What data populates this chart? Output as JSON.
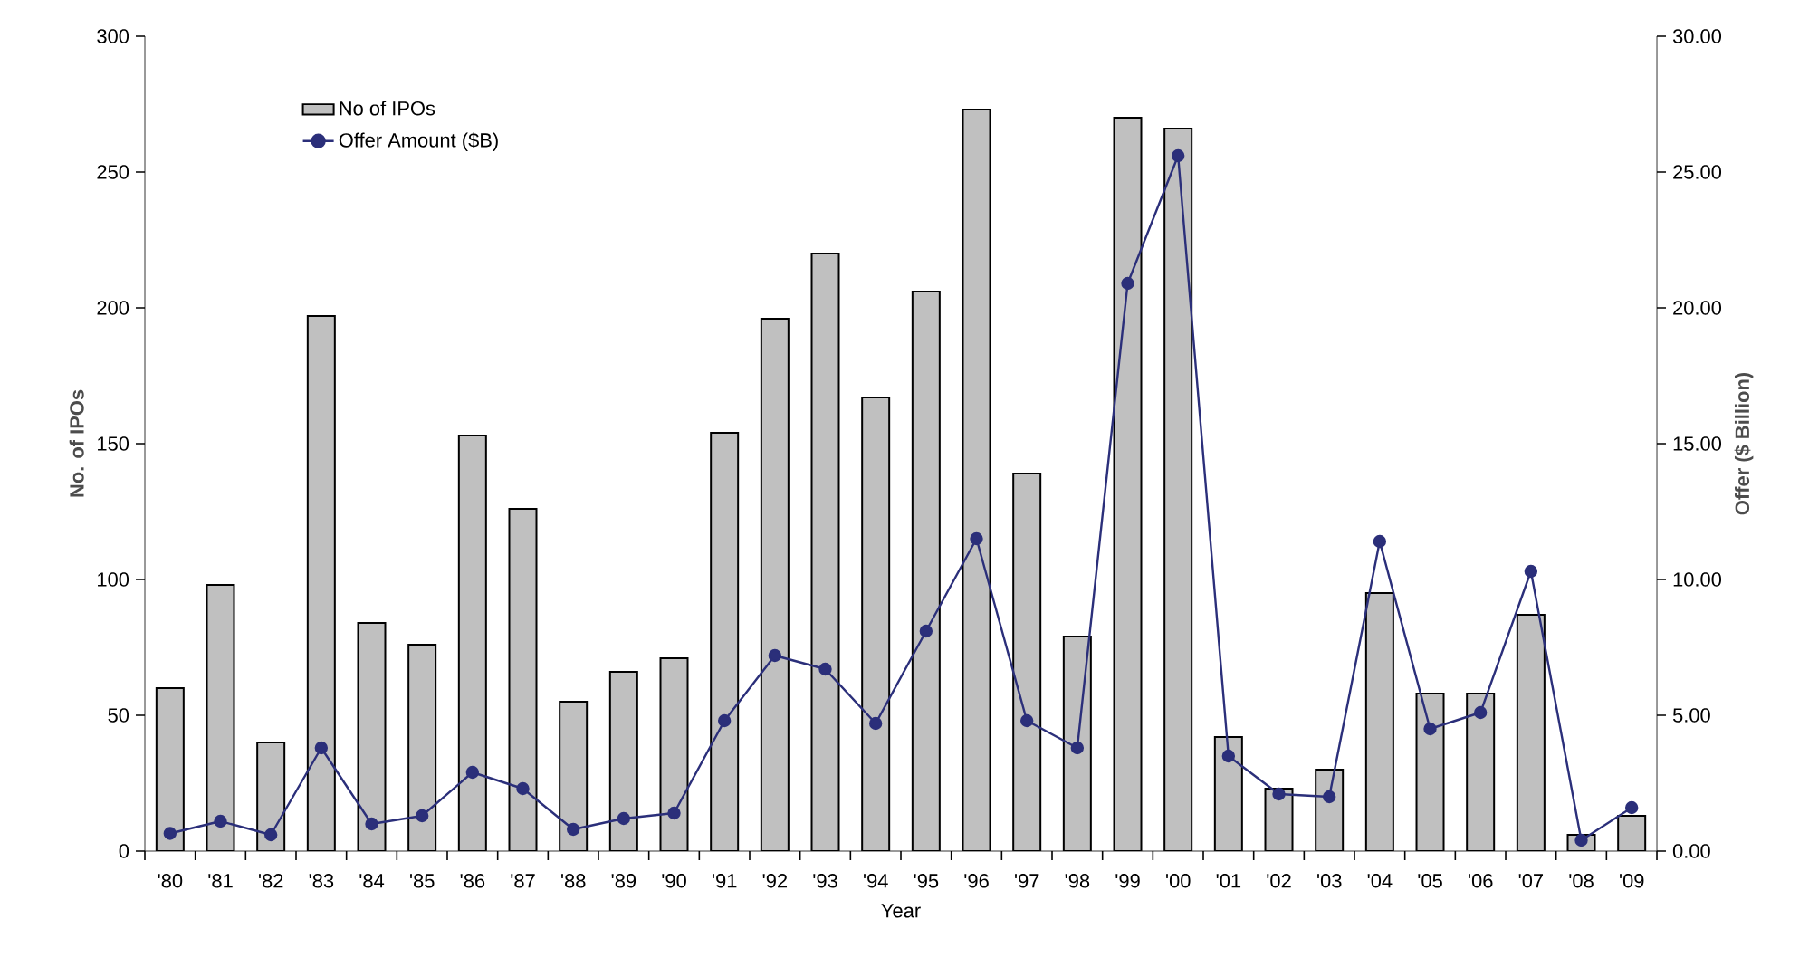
{
  "chart_data": {
    "type": "bar",
    "xlabel": "Year",
    "ylabel": "No. of IPOs",
    "y2label": "Offer ($ Billion)",
    "categories": [
      "'80",
      "'81",
      "'82",
      "'83",
      "'84",
      "'85",
      "'86",
      "'87",
      "'88",
      "'89",
      "'90",
      "'91",
      "'92",
      "'93",
      "'94",
      "'95",
      "'96",
      "'97",
      "'98",
      "'99",
      "'00",
      "'01",
      "'02",
      "'03",
      "'04",
      "'05",
      "'06",
      "'07",
      "'08",
      "'09"
    ],
    "series": [
      {
        "name": "No of IPOs",
        "color": "#c0c0c0",
        "values": [
          60,
          98,
          40,
          197,
          84,
          76,
          153,
          126,
          55,
          66,
          71,
          154,
          196,
          220,
          167,
          206,
          273,
          139,
          79,
          270,
          266,
          42,
          23,
          30,
          95,
          58,
          58,
          87,
          6,
          13
        ]
      },
      {
        "name": "Offer Amount ($B)",
        "type": "line",
        "axis": "y2",
        "color": "#2b2f7a",
        "marker": "circle",
        "values": [
          0.65,
          1.1,
          0.6,
          3.8,
          1.0,
          1.3,
          2.9,
          2.3,
          0.8,
          1.2,
          1.4,
          4.8,
          7.2,
          6.7,
          4.7,
          8.1,
          11.5,
          4.8,
          3.8,
          20.9,
          25.6,
          3.5,
          2.1,
          2.0,
          11.4,
          4.5,
          5.1,
          10.3,
          0.4,
          1.6
        ]
      }
    ],
    "ylim": [
      0,
      300
    ],
    "yticks": [
      0,
      50,
      100,
      150,
      200,
      250,
      300
    ],
    "y2lim": [
      0,
      30
    ],
    "y2ticks": [
      {
        "value": 0,
        "label": "0.00"
      },
      {
        "value": 5,
        "label": "5.00"
      },
      {
        "value": 10,
        "label": "10.00"
      },
      {
        "value": 15,
        "label": "15.00"
      },
      {
        "value": 20,
        "label": "20.00"
      },
      {
        "value": 25,
        "label": "25.00"
      },
      {
        "value": 30,
        "label": "30.00"
      }
    ],
    "legend": "top left",
    "grid": false
  }
}
